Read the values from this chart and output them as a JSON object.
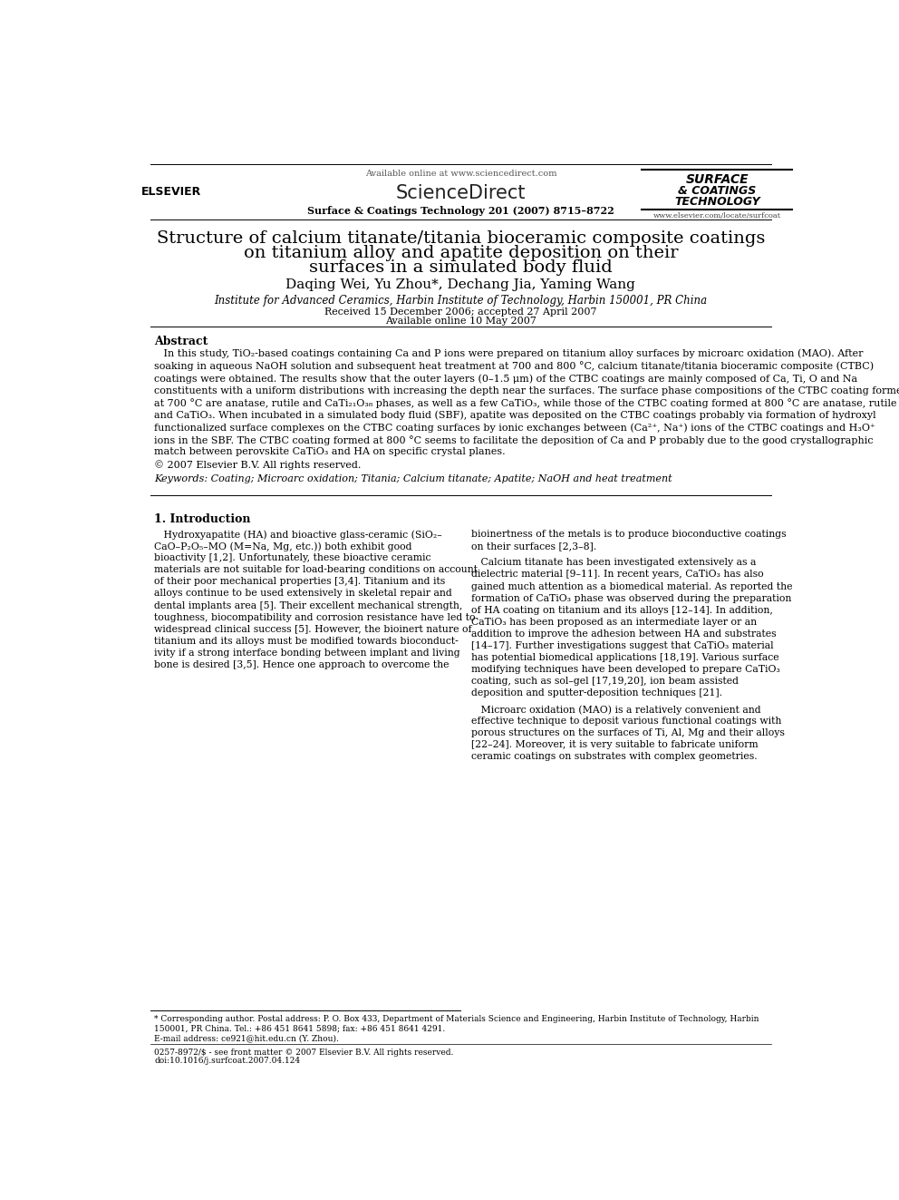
{
  "bg_color": "#ffffff",
  "page_width": 9.92,
  "page_height": 13.23,
  "header_available_online": "Available online at www.sciencedirect.com",
  "header_sciencedirect": "ScienceDirect",
  "header_journal_line": "Surface & Coatings Technology 201 (2007) 8715–8722",
  "header_journal_name_line1": "SURFACE",
  "header_journal_name_line2": "& COATINGS",
  "header_journal_name_line3": "TECHNOLOGY",
  "header_journal_url": "www.elsevier.com/locate/surfcoat",
  "header_elsevier_label": "ELSEVIER",
  "title_line1": "Structure of calcium titanate/titania bioceramic composite coatings",
  "title_line2": "on titanium alloy and apatite deposition on their",
  "title_line3": "surfaces in a simulated body fluid",
  "authors": "Daqing Wei, Yu Zhou*, Dechang Jia, Yaming Wang",
  "affiliation": "Institute for Advanced Ceramics, Harbin Institute of Technology, Harbin 150001, PR China",
  "received": "Received 15 December 2006; accepted 27 April 2007",
  "available": "Available online 10 May 2007",
  "abstract_title": "Abstract",
  "abstract_lines": [
    "   In this study, TiO₂-based coatings containing Ca and P ions were prepared on titanium alloy surfaces by microarc oxidation (MAO). After",
    "soaking in aqueous NaOH solution and subsequent heat treatment at 700 and 800 °C, calcium titanate/titania bioceramic composite (CTBC)",
    "coatings were obtained. The results show that the outer layers (0–1.5 μm) of the CTBC coatings are mainly composed of Ca, Ti, O and Na",
    "constituents with a uniform distributions with increasing the depth near the surfaces. The surface phase compositions of the CTBC coating formed",
    "at 700 °C are anatase, rutile and CaTi₂₁O₃₈ phases, as well as a few CaTiO₃, while those of the CTBC coating formed at 800 °C are anatase, rutile",
    "and CaTiO₃. When incubated in a simulated body fluid (SBF), apatite was deposited on the CTBC coatings probably via formation of hydroxyl",
    "functionalized surface complexes on the CTBC coating surfaces by ionic exchanges between (Ca²⁺, Na⁺) ions of the CTBC coatings and H₃O⁺",
    "ions in the SBF. The CTBC coating formed at 800 °C seems to facilitate the deposition of Ca and P probably due to the good crystallographic",
    "match between perovskite CaTiO₃ and HA on specific crystal planes."
  ],
  "copyright": "© 2007 Elsevier B.V. All rights reserved.",
  "keywords_line": "Keywords: Coating; Microarc oxidation; Titania; Calcium titanate; Apatite; NaOH and heat treatment",
  "section1_title": "1. Introduction",
  "intro_col1_lines": [
    "   Hydroxyapatite (HA) and bioactive glass-ceramic (SiO₂–",
    "CaO–P₂O₅–MO (M=Na, Mg, etc.)) both exhibit good",
    "bioactivity [1,2]. Unfortunately, these bioactive ceramic",
    "materials are not suitable for load-bearing conditions on account",
    "of their poor mechanical properties [3,4]. Titanium and its",
    "alloys continue to be used extensively in skeletal repair and",
    "dental implants area [5]. Their excellent mechanical strength,",
    "toughness, biocompatibility and corrosion resistance have led to",
    "widespread clinical success [5]. However, the bioinert nature of",
    "titanium and its alloys must be modified towards bioconduct-",
    "ivity if a strong interface bonding between implant and living",
    "bone is desired [3,5]. Hence one approach to overcome the"
  ],
  "intro_col2_block1": [
    "bioinertness of the metals is to produce bioconductive coatings",
    "on their surfaces [2,3–8]."
  ],
  "intro_col2_block2": [
    "   Calcium titanate has been investigated extensively as a",
    "dielectric material [9–11]. In recent years, CaTiO₃ has also",
    "gained much attention as a biomedical material. As reported the",
    "formation of CaTiO₃ phase was observed during the preparation",
    "of HA coating on titanium and its alloys [12–14]. In addition,",
    "CaTiO₃ has been proposed as an intermediate layer or an",
    "addition to improve the adhesion between HA and substrates",
    "[14–17]. Further investigations suggest that CaTiO₃ material",
    "has potential biomedical applications [18,19]. Various surface",
    "modifying techniques have been developed to prepare CaTiO₃",
    "coating, such as sol–gel [17,19,20], ion beam assisted",
    "deposition and sputter-deposition techniques [21]."
  ],
  "intro_col2_block3": [
    "   Microarc oxidation (MAO) is a relatively convenient and",
    "effective technique to deposit various functional coatings with",
    "porous structures on the surfaces of Ti, Al, Mg and their alloys",
    "[22–24]. Moreover, it is very suitable to fabricate uniform",
    "ceramic coatings on substrates with complex geometries."
  ],
  "footer_note1": "* Corresponding author. Postal address: P. O. Box 433, Department of Materials Science and Engineering, Harbin Institute of Technology, Harbin",
  "footer_note2": "150001, PR China. Tel.: +86 451 8641 5898; fax: +86 451 8641 4291.",
  "footer_note3": "E-mail address: ce921@hit.edu.cn (Y. Zhou).",
  "footer_issn": "0257-8972/$ - see front matter © 2007 Elsevier B.V. All rights reserved.",
  "footer_doi": "doi:10.1016/j.surfcoat.2007.04.124"
}
